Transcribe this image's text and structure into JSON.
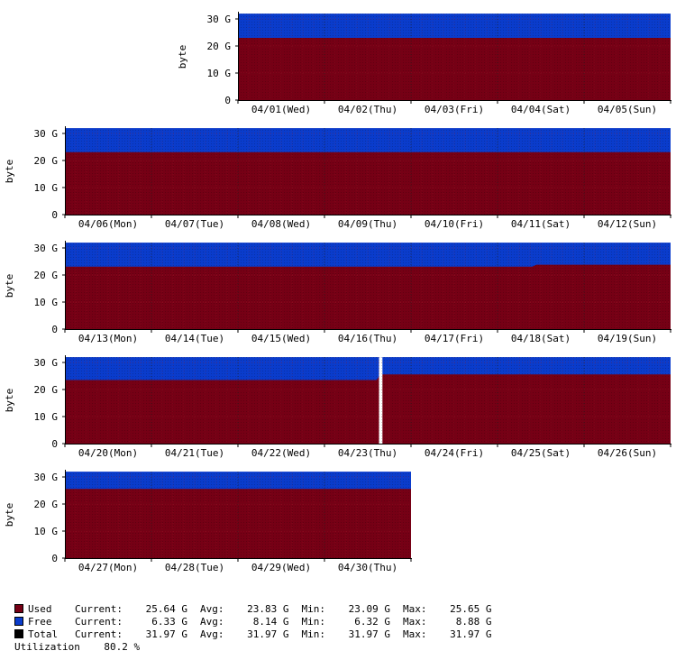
{
  "colors": {
    "used": "#760015",
    "free": "#0a3ccc",
    "total": "#000000",
    "grid": "#c02a3a",
    "axis": "#000000"
  },
  "chart_data": {
    "type": "area",
    "ylabel": "byte",
    "yticks": [
      {
        "value": 0,
        "label": "0"
      },
      {
        "value": 10,
        "label": "10 G"
      },
      {
        "value": 20,
        "label": "20 G"
      },
      {
        "value": 30,
        "label": "30 G"
      }
    ],
    "ylim": [
      0,
      32
    ],
    "units": "G",
    "total": 31.97,
    "weeks": [
      {
        "days": [
          "04/01(Wed)",
          "04/02(Thu)",
          "04/03(Fri)",
          "04/04(Sat)",
          "04/05(Sun)"
        ],
        "used": [
          [
            0,
            23.0
          ],
          [
            5,
            23.0
          ]
        ]
      },
      {
        "days": [
          "04/06(Mon)",
          "04/07(Tue)",
          "04/08(Wed)",
          "04/09(Thu)",
          "04/10(Fri)",
          "04/11(Sat)",
          "04/12(Sun)"
        ],
        "used": [
          [
            0,
            23.1
          ],
          [
            7,
            23.1
          ]
        ]
      },
      {
        "days": [
          "04/13(Mon)",
          "04/14(Tue)",
          "04/15(Wed)",
          "04/16(Thu)",
          "04/17(Fri)",
          "04/18(Sat)",
          "04/19(Sun)"
        ],
        "used": [
          [
            0,
            23.1
          ],
          [
            5.4,
            23.1
          ],
          [
            5.45,
            23.8
          ],
          [
            7,
            23.8
          ]
        ]
      },
      {
        "days": [
          "04/20(Mon)",
          "04/21(Tue)",
          "04/22(Wed)",
          "04/23(Thu)",
          "04/24(Fri)",
          "04/25(Sat)",
          "04/26(Sun)"
        ],
        "used": [
          [
            0,
            23.5
          ],
          [
            3.6,
            23.5
          ],
          [
            3.65,
            25.6
          ],
          [
            7,
            25.6
          ]
        ],
        "gap": [
          3.63,
          3.67
        ]
      },
      {
        "days": [
          "04/27(Mon)",
          "04/28(Tue)",
          "04/29(Wed)",
          "04/30(Thu)"
        ],
        "used": [
          [
            0,
            25.6
          ],
          [
            4,
            25.6
          ]
        ]
      }
    ]
  },
  "legend": [
    {
      "key": "used",
      "name": "Used",
      "current": "25.64 G",
      "avg": "23.83 G",
      "min": "23.09 G",
      "max": "25.65 G"
    },
    {
      "key": "free",
      "name": "Free",
      "current": "6.33 G",
      "avg": "8.14 G",
      "min": "6.32 G",
      "max": "8.88 G"
    },
    {
      "key": "total",
      "name": "Total",
      "current": "31.97 G",
      "avg": "31.97 G",
      "min": "31.97 G",
      "max": "31.97 G"
    }
  ],
  "labels": {
    "current": "Current:",
    "avg": "Avg:",
    "min": "Min:",
    "max": "Max:"
  },
  "utilization": {
    "label": "Utilization",
    "value": "80.2 %"
  }
}
